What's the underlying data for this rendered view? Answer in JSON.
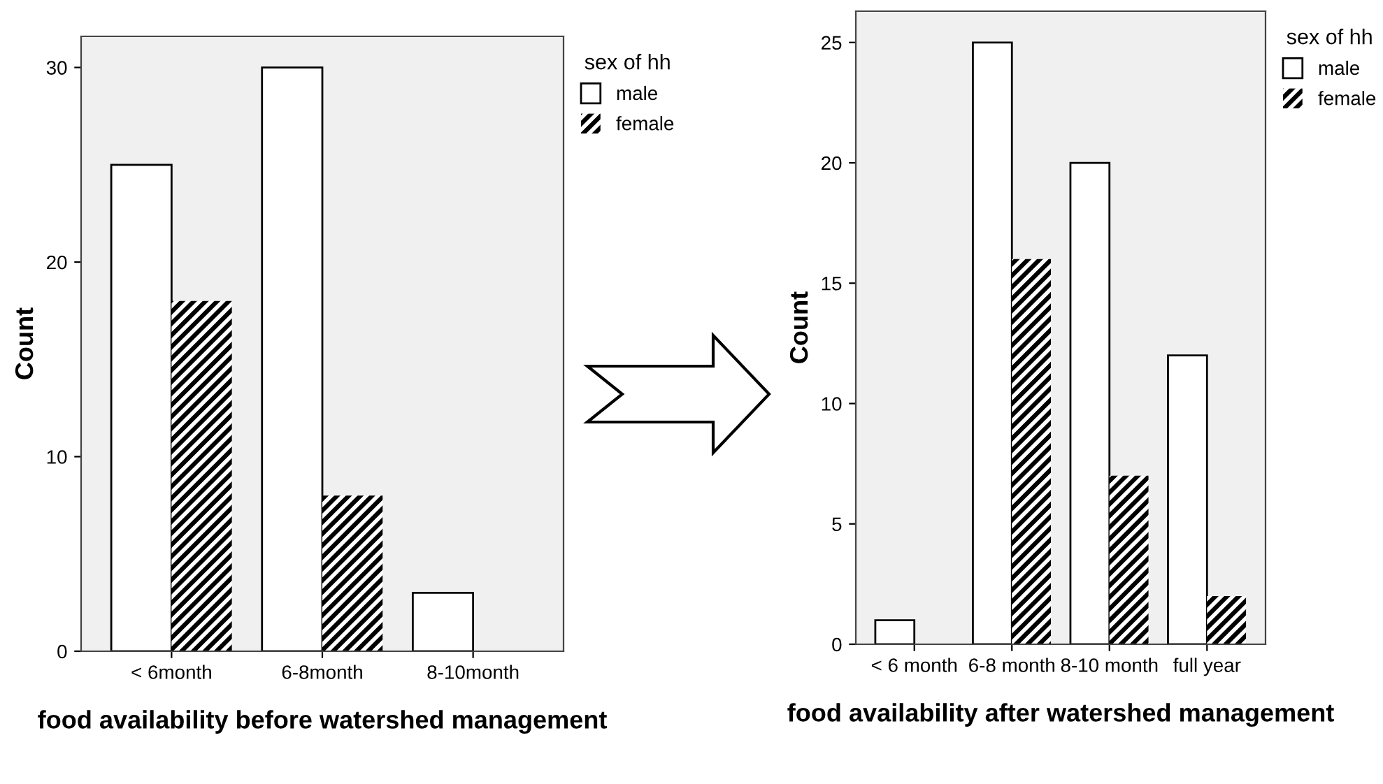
{
  "chart_data": [
    {
      "type": "bar",
      "xlabel": "food availability before watershed management",
      "ylabel": "Count",
      "legend_title": "sex of hh",
      "legend": "top right",
      "grid": false,
      "categories": [
        "< 6month",
        "6-8month",
        "8-10month"
      ],
      "series": [
        {
          "name": "male",
          "color": "#ffffff",
          "values": [
            25,
            30,
            3
          ]
        },
        {
          "name": "female",
          "color": "#000000",
          "values": [
            18,
            8,
            null
          ]
        }
      ],
      "ylim": [
        0,
        31.6
      ],
      "yticks": [
        0,
        10,
        20,
        30
      ]
    },
    {
      "type": "bar",
      "xlabel": "food availability after watershed management",
      "ylabel": "Count",
      "legend_title": "sex of hh",
      "legend": "top right",
      "grid": false,
      "categories": [
        "< 6 month",
        "6-8 month",
        "8-10 month",
        "full year"
      ],
      "series": [
        {
          "name": "male",
          "color": "#ffffff",
          "values": [
            1,
            25,
            20,
            12
          ]
        },
        {
          "name": "female",
          "color": "#000000",
          "values": [
            null,
            16,
            7,
            2
          ]
        }
      ],
      "ylim": [
        0,
        26.3
      ],
      "yticks": [
        0,
        5,
        10,
        15,
        20,
        25
      ]
    }
  ]
}
